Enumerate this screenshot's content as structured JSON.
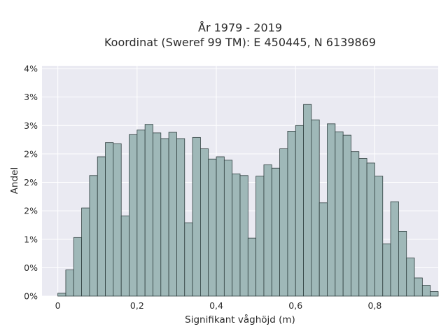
{
  "chart_data": {
    "type": "bar",
    "title_line1": "År 1979 - 2019",
    "title_line2": "Koordinat (Sweref 99 TM): E 450445, N 6139869",
    "xlabel": "Signifikant våghöjd (m)",
    "ylabel": "Andel",
    "x_ticks": [
      {
        "value": 0,
        "label": "0"
      },
      {
        "value": 0.2,
        "label": "0,2"
      },
      {
        "value": 0.4,
        "label": "0,4"
      },
      {
        "value": 0.6,
        "label": "0,6"
      },
      {
        "value": 0.8,
        "label": "0,8"
      }
    ],
    "y_ticks": [
      {
        "value": 0.0,
        "label": "0%"
      },
      {
        "value": 0.005,
        "label": "0%"
      },
      {
        "value": 0.01,
        "label": "1%"
      },
      {
        "value": 0.015,
        "label": "2%"
      },
      {
        "value": 0.02,
        "label": "2%"
      },
      {
        "value": 0.025,
        "label": "2%"
      },
      {
        "value": 0.03,
        "label": "3%"
      },
      {
        "value": 0.035,
        "label": "3%"
      },
      {
        "value": 0.04,
        "label": "4%"
      }
    ],
    "xlim": [
      -0.04,
      0.96
    ],
    "ylim": [
      0,
      0.0405
    ],
    "bin_width": 0.02,
    "bin_starts": [
      0.0,
      0.02,
      0.04,
      0.06,
      0.08,
      0.1,
      0.12,
      0.14,
      0.16,
      0.18,
      0.2,
      0.22,
      0.24,
      0.26,
      0.28,
      0.3,
      0.32,
      0.34,
      0.36,
      0.38,
      0.4,
      0.42,
      0.44,
      0.46,
      0.48,
      0.5,
      0.52,
      0.54,
      0.56,
      0.58,
      0.6,
      0.62,
      0.64,
      0.66,
      0.68,
      0.7,
      0.72,
      0.74,
      0.76,
      0.78,
      0.8,
      0.82,
      0.84,
      0.86,
      0.88,
      0.9,
      0.92,
      0.94
    ],
    "values": [
      0.0005,
      0.0046,
      0.0103,
      0.0155,
      0.0212,
      0.0245,
      0.027,
      0.0268,
      0.0141,
      0.0284,
      0.0292,
      0.0302,
      0.0287,
      0.0277,
      0.0288,
      0.0277,
      0.0129,
      0.0279,
      0.0259,
      0.0241,
      0.0245,
      0.0239,
      0.0215,
      0.0212,
      0.0102,
      0.0211,
      0.0231,
      0.0225,
      0.0259,
      0.029,
      0.03,
      0.0337,
      0.031,
      0.0164,
      0.0303,
      0.0289,
      0.0283,
      0.0254,
      0.0242,
      0.0234,
      0.0211,
      0.0092,
      0.0166,
      0.0114,
      0.0067,
      0.0032,
      0.0019,
      0.0008
    ],
    "bar_color": "#9fb8b8",
    "bar_edge_color": "#2f3f3f",
    "plot_bg": "#eaeaf2",
    "grid": true
  }
}
